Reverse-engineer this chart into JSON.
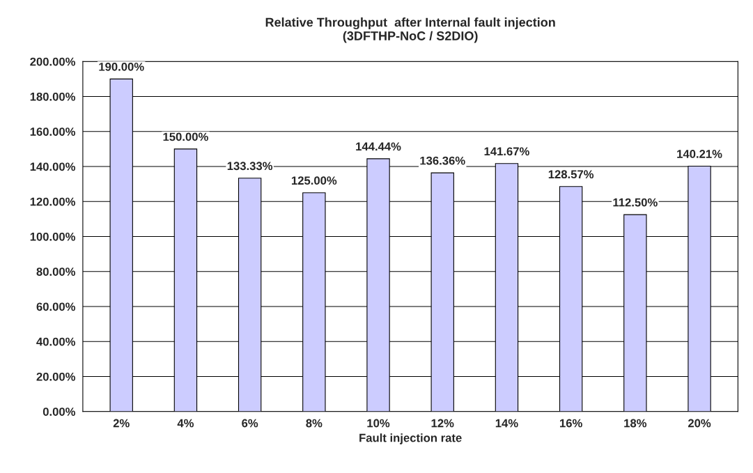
{
  "chart_data": {
    "type": "bar",
    "title": "Relative Throughput  after Internal fault injection\n(3DFTHP-NoC / S2DIO)",
    "xlabel": "Fault injection rate",
    "categories": [
      "2%",
      "4%",
      "6%",
      "8%",
      "10%",
      "12%",
      "14%",
      "16%",
      "18%",
      "20%"
    ],
    "values": [
      190,
      150,
      133.33,
      125,
      144.44,
      136.36,
      141.67,
      128.57,
      112.5,
      140.21
    ],
    "value_labels": [
      "190.00%",
      "150.00%",
      "133.33%",
      "125.00%",
      "144.44%",
      "136.36%",
      "141.67%",
      "128.57%",
      "112.50%",
      "140.21%"
    ],
    "color": "#ccccff",
    "ylim": [
      0,
      200
    ],
    "yticks": [
      {
        "value": 0,
        "label": "0.00%"
      },
      {
        "value": 20,
        "label": "20.00%"
      },
      {
        "value": 40,
        "label": "40.00%"
      },
      {
        "value": 60,
        "label": "60.00%"
      },
      {
        "value": 80,
        "label": "80.00%"
      },
      {
        "value": 100,
        "label": "100.00%"
      },
      {
        "value": 120,
        "label": "120.00%"
      },
      {
        "value": 140,
        "label": "140.00%"
      },
      {
        "value": 160,
        "label": "160.00%"
      },
      {
        "value": 180,
        "label": "180.00%"
      },
      {
        "value": 200,
        "label": "200.00%"
      }
    ],
    "grid": "y"
  }
}
